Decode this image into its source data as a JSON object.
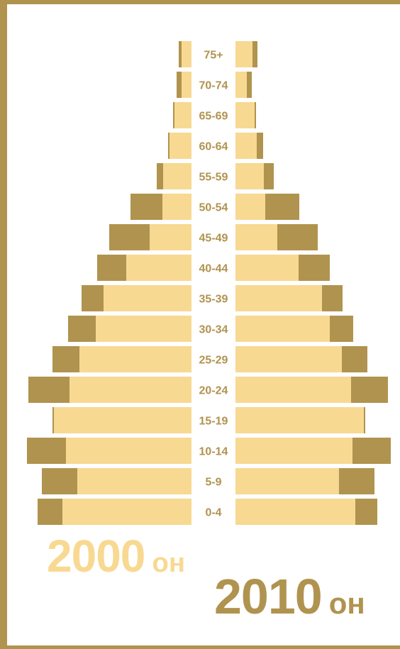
{
  "colors": {
    "frame": "#b0934f",
    "light": "#f8d992",
    "dark": "#b0934f"
  },
  "chart_data": {
    "type": "bar",
    "orientation": "horizontal-mirrored",
    "categories": [
      "75+",
      "70-74",
      "65-69",
      "60-64",
      "55-59",
      "50-54",
      "45-49",
      "40-44",
      "35-39",
      "30-34",
      "25-29",
      "20-24",
      "15-19",
      "10-14",
      "5-9",
      "0-4"
    ],
    "series": [
      {
        "side": "left",
        "label": "2000",
        "suffix": "он",
        "outer": [
          18,
          21,
          26,
          33,
          49,
          86,
          116,
          133,
          155,
          174,
          196,
          230,
          196,
          232,
          211,
          217
        ],
        "inner": [
          14,
          14,
          24,
          31,
          40,
          41,
          59,
          92,
          124,
          135,
          158,
          172,
          194,
          177,
          161,
          182
        ]
      },
      {
        "side": "right",
        "label": "2010",
        "suffix": "он",
        "outer": [
          31,
          23,
          29,
          39,
          54,
          90,
          116,
          133,
          151,
          166,
          186,
          215,
          183,
          219,
          196,
          200
        ],
        "inner": [
          24,
          16,
          27,
          30,
          40,
          42,
          59,
          89,
          122,
          133,
          150,
          163,
          181,
          165,
          146,
          169
        ]
      }
    ]
  }
}
